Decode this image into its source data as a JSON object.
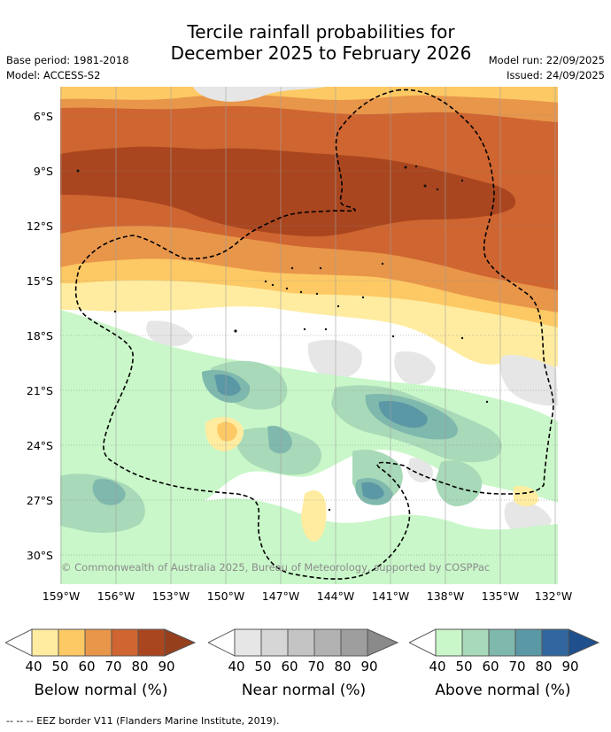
{
  "title": {
    "line1": "Tercile rainfall probabilities for",
    "line2": "December 2025 to February 2026"
  },
  "meta": {
    "base_period": "Base period: 1981-2018",
    "model": "Model: ACCESS-S2",
    "model_run": "Model run: 22/09/2025",
    "issued": "Issued: 24/09/2025"
  },
  "map": {
    "lat_labels": [
      "6°S",
      "9°S",
      "12°S",
      "15°S",
      "18°S",
      "21°S",
      "24°S",
      "27°S",
      "30°S"
    ],
    "lon_labels": [
      "159°W",
      "156°W",
      "153°W",
      "150°W",
      "147°W",
      "144°W",
      "141°W",
      "138°W",
      "135°W",
      "132°W"
    ],
    "copyright": "© Commonwealth of Australia 2025, Bureau of Meteorology, supported by COSPPac"
  },
  "legends": [
    {
      "title": "Below normal (%)",
      "ticks": [
        "40",
        "50",
        "60",
        "70",
        "80",
        "90"
      ],
      "colors": [
        "#ffeca0",
        "#fdc964",
        "#e8964a",
        "#cf6530",
        "#a9461f"
      ]
    },
    {
      "title": "Near normal (%)",
      "ticks": [
        "40",
        "50",
        "60",
        "70",
        "80",
        "90"
      ],
      "colors": [
        "#e6e6e6",
        "#d6d6d6",
        "#c4c4c4",
        "#b2b2b2",
        "#9e9e9e"
      ]
    },
    {
      "title": "Above normal (%)",
      "ticks": [
        "40",
        "50",
        "60",
        "70",
        "80",
        "90"
      ],
      "colors": [
        "#c9f7c9",
        "#a8d9b8",
        "#7fb8ad",
        "#5b98a6",
        "#31679e"
      ]
    }
  ],
  "footer": "--  --  -- EEZ border V11 (Flanders Marine Institute, 2019).",
  "colors": {
    "below_40": "#ffeca0",
    "below_50": "#fdc964",
    "below_60": "#e8964a",
    "below_70": "#cf6530",
    "below_80": "#a9461f",
    "near_40": "#e6e6e6",
    "near_50": "#d6d6d6",
    "above_40": "#c9f7c9",
    "above_50": "#a8d9b8",
    "above_60": "#7fb8ad",
    "above_70": "#5b98a6"
  }
}
